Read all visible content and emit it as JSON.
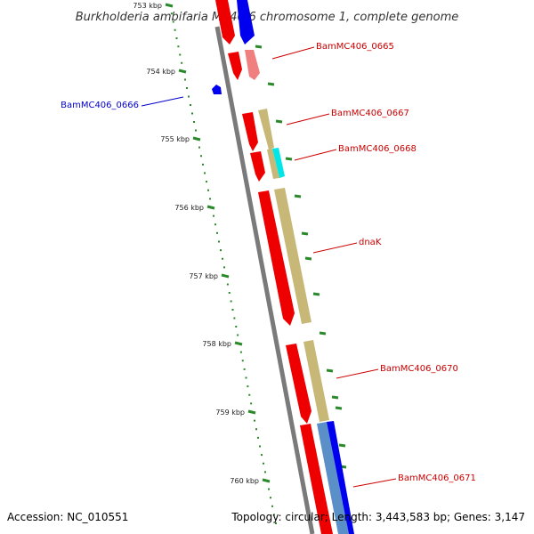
{
  "title": "Burkholderia ambifaria MC40-6 chromosome 1, complete genome",
  "footer": {
    "accession": "Accession: NC_010551",
    "summary": "Topology: circular; Length: 3,443,583 bp; Genes: 3,147"
  },
  "colors": {
    "backbone": "#7a7a7a",
    "tick": "#2a8a2a",
    "forward_label": "#cc0000",
    "reverse_label": "#0000cc"
  },
  "ticks": [
    {
      "label": "753 kbp"
    },
    {
      "label": "754 kbp"
    },
    {
      "label": "755 kbp"
    },
    {
      "label": "756 kbp"
    },
    {
      "label": "757 kbp"
    },
    {
      "label": "758 kbp"
    },
    {
      "label": "759 kbp"
    },
    {
      "label": "760 kbp"
    }
  ],
  "gene_labels": [
    {
      "name": "BamMC406_0665",
      "strand": "forward"
    },
    {
      "name": "BamMC406_0666",
      "strand": "reverse"
    },
    {
      "name": "BamMC406_0667",
      "strand": "forward"
    },
    {
      "name": "BamMC406_0668",
      "strand": "forward"
    },
    {
      "name": "dnaK",
      "strand": "forward"
    },
    {
      "name": "BamMC406_0670",
      "strand": "forward"
    },
    {
      "name": "BamMC406_0671",
      "strand": "forward"
    }
  ]
}
